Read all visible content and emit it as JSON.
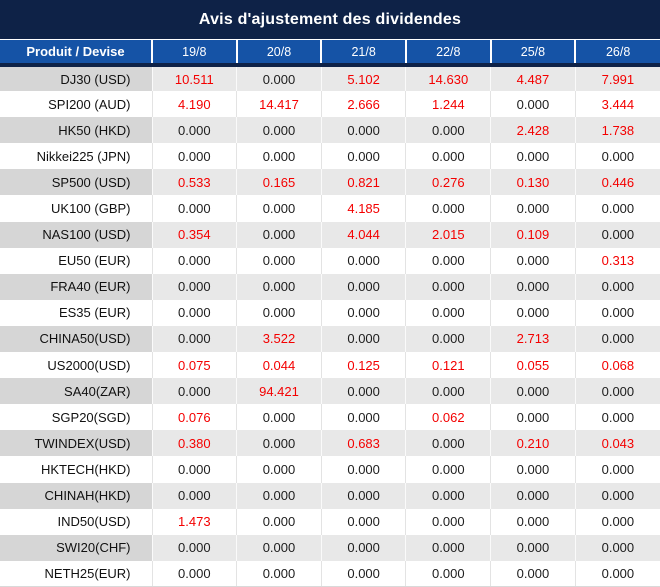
{
  "title": "Avis d'ajustement des dividendes",
  "colors": {
    "title_bg": "#0e2247",
    "header_bg": "#1553a6",
    "header_text": "#ffffff",
    "zero_value_text": "#1d1d1d",
    "nonzero_value_text": "#f40000",
    "stripe_product_bg": "#d6d6d6",
    "stripe_value_bg": "#e8e8e8"
  },
  "table": {
    "product_header": "Produit / Devise",
    "date_headers": [
      "19/8",
      "20/8",
      "21/8",
      "22/8",
      "25/8",
      "26/8"
    ],
    "zero_string": "0.000",
    "rows": [
      {
        "product": "DJ30 (USD)",
        "values": [
          "10.511",
          "0.000",
          "5.102",
          "14.630",
          "4.487",
          "7.991"
        ]
      },
      {
        "product": "SPI200 (AUD)",
        "values": [
          "4.190",
          "14.417",
          "2.666",
          "1.244",
          "0.000",
          "3.444"
        ]
      },
      {
        "product": "HK50 (HKD)",
        "values": [
          "0.000",
          "0.000",
          "0.000",
          "0.000",
          "2.428",
          "1.738"
        ]
      },
      {
        "product": "Nikkei225 (JPN)",
        "values": [
          "0.000",
          "0.000",
          "0.000",
          "0.000",
          "0.000",
          "0.000"
        ]
      },
      {
        "product": "SP500 (USD)",
        "values": [
          "0.533",
          "0.165",
          "0.821",
          "0.276",
          "0.130",
          "0.446"
        ]
      },
      {
        "product": "UK100 (GBP)",
        "values": [
          "0.000",
          "0.000",
          "4.185",
          "0.000",
          "0.000",
          "0.000"
        ]
      },
      {
        "product": "NAS100 (USD)",
        "values": [
          "0.354",
          "0.000",
          "4.044",
          "2.015",
          "0.109",
          "0.000"
        ]
      },
      {
        "product": "EU50 (EUR)",
        "values": [
          "0.000",
          "0.000",
          "0.000",
          "0.000",
          "0.000",
          "0.313"
        ]
      },
      {
        "product": "FRA40 (EUR)",
        "values": [
          "0.000",
          "0.000",
          "0.000",
          "0.000",
          "0.000",
          "0.000"
        ]
      },
      {
        "product": "ES35 (EUR)",
        "values": [
          "0.000",
          "0.000",
          "0.000",
          "0.000",
          "0.000",
          "0.000"
        ]
      },
      {
        "product": "CHINA50(USD)",
        "values": [
          "0.000",
          "3.522",
          "0.000",
          "0.000",
          "2.713",
          "0.000"
        ]
      },
      {
        "product": "US2000(USD)",
        "values": [
          "0.075",
          "0.044",
          "0.125",
          "0.121",
          "0.055",
          "0.068"
        ]
      },
      {
        "product": "SA40(ZAR)",
        "values": [
          "0.000",
          "94.421",
          "0.000",
          "0.000",
          "0.000",
          "0.000"
        ]
      },
      {
        "product": "SGP20(SGD)",
        "values": [
          "0.076",
          "0.000",
          "0.000",
          "0.062",
          "0.000",
          "0.000"
        ]
      },
      {
        "product": "TWINDEX(USD)",
        "values": [
          "0.380",
          "0.000",
          "0.683",
          "0.000",
          "0.210",
          "0.043"
        ]
      },
      {
        "product": "HKTECH(HKD)",
        "values": [
          "0.000",
          "0.000",
          "0.000",
          "0.000",
          "0.000",
          "0.000"
        ]
      },
      {
        "product": "CHINAH(HKD)",
        "values": [
          "0.000",
          "0.000",
          "0.000",
          "0.000",
          "0.000",
          "0.000"
        ]
      },
      {
        "product": "IND50(USD)",
        "values": [
          "1.473",
          "0.000",
          "0.000",
          "0.000",
          "0.000",
          "0.000"
        ]
      },
      {
        "product": "SWI20(CHF)",
        "values": [
          "0.000",
          "0.000",
          "0.000",
          "0.000",
          "0.000",
          "0.000"
        ]
      },
      {
        "product": "NETH25(EUR)",
        "values": [
          "0.000",
          "0.000",
          "0.000",
          "0.000",
          "0.000",
          "0.000"
        ]
      }
    ]
  }
}
